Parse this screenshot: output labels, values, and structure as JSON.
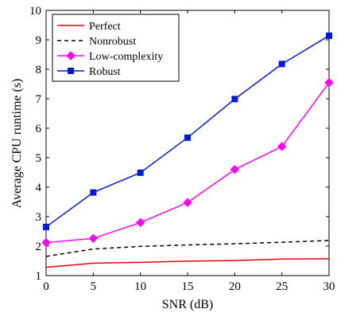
{
  "chart_data": {
    "type": "line",
    "xlabel": "SNR (dB)",
    "ylabel": "Average CPU runtime (s)",
    "x": [
      0,
      5,
      10,
      15,
      20,
      25,
      30
    ],
    "xlim": [
      0,
      30
    ],
    "ylim": [
      1,
      10
    ],
    "xticks": [
      "0",
      "5",
      "10",
      "15",
      "20",
      "25",
      "30"
    ],
    "yticks": [
      "1",
      "2",
      "3",
      "4",
      "5",
      "6",
      "7",
      "8",
      "9",
      "10"
    ],
    "grid": false,
    "legend_position": "top-left",
    "series": [
      {
        "name": "Perfect",
        "color": "#e8000b",
        "style": "solid",
        "marker": "none",
        "values": [
          1.28,
          1.42,
          1.45,
          1.49,
          1.51,
          1.56,
          1.57
        ]
      },
      {
        "name": "Nonrobust",
        "color": "#000000",
        "style": "dashed",
        "marker": "none",
        "values": [
          1.65,
          1.9,
          1.99,
          2.04,
          2.08,
          2.13,
          2.19
        ]
      },
      {
        "name": "Low-complexity",
        "color": "#ff00ff",
        "style": "solid",
        "marker": "diamond",
        "values": [
          2.12,
          2.26,
          2.8,
          3.48,
          4.6,
          5.38,
          7.55
        ]
      },
      {
        "name": "Robust",
        "color": "#0019e0",
        "style": "solid",
        "marker": "square",
        "values": [
          2.65,
          3.82,
          4.49,
          5.68,
          6.99,
          8.18,
          9.14
        ]
      }
    ]
  }
}
